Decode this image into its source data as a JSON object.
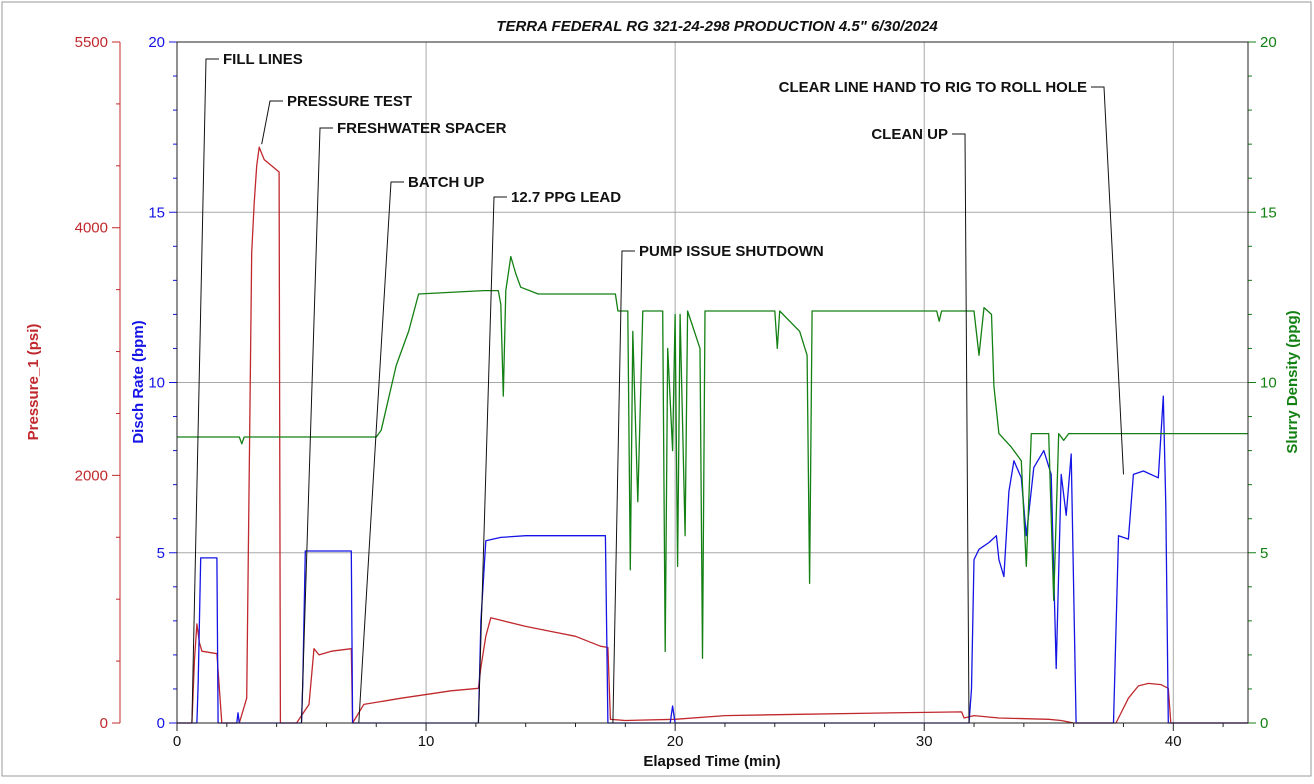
{
  "chart_data": {
    "type": "line",
    "title": "TERRA FEDERAL RG 321-24-298 PRODUCTION 4.5\" 6/30/2024",
    "xlabel": "Elapsed Time (min)",
    "xlim": [
      0,
      43
    ],
    "x_ticks": [
      "0",
      "10",
      "20",
      "30",
      "40"
    ],
    "grid": true,
    "colors": {
      "pressure": "#c0282d",
      "rate": "#1414e6",
      "density": "#138013",
      "grid": "#a8a8a8"
    },
    "axes": {
      "pressure": {
        "label": "Pressure_1 (psi)",
        "range": [
          0,
          5500
        ],
        "ticks": [
          "0",
          "2000",
          "4000",
          "5500"
        ],
        "tick_values": [
          0,
          2000,
          4000,
          5500
        ],
        "color": "#c0282d"
      },
      "rate": {
        "label": "Disch Rate (bpm)",
        "range": [
          0,
          20
        ],
        "ticks": [
          "0",
          "5",
          "10",
          "15",
          "20"
        ],
        "tick_values": [
          0,
          5,
          10,
          15,
          20
        ],
        "color": "#1414e6"
      },
      "density": {
        "label": "Slurry Density (ppg)",
        "range": [
          0,
          20
        ],
        "ticks": [
          "0",
          "5",
          "10",
          "15",
          "20"
        ],
        "tick_values": [
          0,
          5,
          10,
          15,
          20
        ],
        "color": "#138013"
      }
    },
    "series": [
      {
        "name": "Pressure_1 (psi)",
        "axis": "pressure",
        "points": [
          [
            0,
            0
          ],
          [
            0.6,
            0
          ],
          [
            0.7,
            500
          ],
          [
            0.8,
            800
          ],
          [
            0.9,
            650
          ],
          [
            1.0,
            580
          ],
          [
            1.6,
            560
          ],
          [
            1.8,
            0
          ],
          [
            2.5,
            0
          ],
          [
            2.8,
            200
          ],
          [
            2.9,
            2000
          ],
          [
            3.0,
            3800
          ],
          [
            3.1,
            4200
          ],
          [
            3.2,
            4500
          ],
          [
            3.3,
            4650
          ],
          [
            3.5,
            4550
          ],
          [
            3.8,
            4500
          ],
          [
            4.1,
            4450
          ],
          [
            4.15,
            0
          ],
          [
            4.8,
            0
          ],
          [
            5.3,
            150
          ],
          [
            5.5,
            600
          ],
          [
            5.7,
            550
          ],
          [
            6.2,
            580
          ],
          [
            7.0,
            600
          ],
          [
            7.05,
            0
          ],
          [
            7.5,
            150
          ],
          [
            9,
            200
          ],
          [
            11,
            260
          ],
          [
            12.1,
            280
          ],
          [
            12.2,
            450
          ],
          [
            12.4,
            700
          ],
          [
            12.6,
            850
          ],
          [
            13.2,
            820
          ],
          [
            14,
            780
          ],
          [
            15,
            740
          ],
          [
            16,
            700
          ],
          [
            17,
            620
          ],
          [
            17.3,
            610
          ],
          [
            17.4,
            30
          ],
          [
            18,
            20
          ],
          [
            20,
            30
          ],
          [
            22,
            60
          ],
          [
            25,
            70
          ],
          [
            28,
            80
          ],
          [
            31.5,
            90
          ],
          [
            31.6,
            40
          ],
          [
            32,
            60
          ],
          [
            33,
            40
          ],
          [
            35,
            30
          ],
          [
            35.5,
            20
          ],
          [
            36,
            0
          ],
          [
            37.7,
            0
          ],
          [
            38.2,
            200
          ],
          [
            38.6,
            300
          ],
          [
            39,
            320
          ],
          [
            39.5,
            310
          ],
          [
            39.8,
            280
          ],
          [
            39.9,
            0
          ],
          [
            43,
            0
          ]
        ]
      },
      {
        "name": "Disch Rate (bpm)",
        "axis": "rate",
        "points": [
          [
            0,
            0
          ],
          [
            0.8,
            0
          ],
          [
            0.85,
            1.2
          ],
          [
            0.95,
            4.85
          ],
          [
            1.6,
            4.85
          ],
          [
            1.65,
            0
          ],
          [
            2.4,
            0
          ],
          [
            2.45,
            0.3
          ],
          [
            2.5,
            0
          ],
          [
            5.0,
            0
          ],
          [
            5.05,
            1.2
          ],
          [
            5.15,
            5.05
          ],
          [
            7.0,
            5.05
          ],
          [
            7.05,
            0
          ],
          [
            12.1,
            0
          ],
          [
            12.2,
            3
          ],
          [
            12.4,
            5.35
          ],
          [
            13,
            5.45
          ],
          [
            14,
            5.5
          ],
          [
            17.2,
            5.5
          ],
          [
            17.3,
            0
          ],
          [
            19.8,
            0
          ],
          [
            19.9,
            0.5
          ],
          [
            20,
            0
          ],
          [
            31.8,
            0
          ],
          [
            31.9,
            1
          ],
          [
            32.0,
            4.8
          ],
          [
            32.2,
            5.1
          ],
          [
            32.6,
            5.3
          ],
          [
            32.9,
            5.5
          ],
          [
            33.0,
            4.8
          ],
          [
            33.2,
            4.3
          ],
          [
            33.4,
            6.8
          ],
          [
            33.6,
            7.7
          ],
          [
            33.9,
            7.2
          ],
          [
            34.1,
            5.5
          ],
          [
            34.4,
            7.5
          ],
          [
            34.8,
            8.0
          ],
          [
            35.1,
            7.3
          ],
          [
            35.3,
            1.6
          ],
          [
            35.5,
            7.3
          ],
          [
            35.7,
            6.1
          ],
          [
            35.9,
            7.9
          ],
          [
            36.1,
            0
          ],
          [
            37.6,
            0
          ],
          [
            37.8,
            5.5
          ],
          [
            38.2,
            5.4
          ],
          [
            38.4,
            7.3
          ],
          [
            38.8,
            7.4
          ],
          [
            39.4,
            7.2
          ],
          [
            39.6,
            9.6
          ],
          [
            39.7,
            6.4
          ],
          [
            39.8,
            0
          ],
          [
            43,
            0
          ]
        ]
      },
      {
        "name": "Slurry Density (ppg)",
        "axis": "density",
        "points": [
          [
            0,
            8.4
          ],
          [
            2.5,
            8.4
          ],
          [
            2.6,
            8.2
          ],
          [
            2.7,
            8.4
          ],
          [
            5,
            8.4
          ],
          [
            7.5,
            8.4
          ],
          [
            8.0,
            8.4
          ],
          [
            8.2,
            8.6
          ],
          [
            8.8,
            10.5
          ],
          [
            9.3,
            11.5
          ],
          [
            9.7,
            12.6
          ],
          [
            12.3,
            12.7
          ],
          [
            12.9,
            12.7
          ],
          [
            13.0,
            12.3
          ],
          [
            13.1,
            9.6
          ],
          [
            13.2,
            12.7
          ],
          [
            13.4,
            13.7
          ],
          [
            13.6,
            13.2
          ],
          [
            13.8,
            12.8
          ],
          [
            14.5,
            12.6
          ],
          [
            17.6,
            12.6
          ],
          [
            17.7,
            12.1
          ],
          [
            18.1,
            12.1
          ],
          [
            18.2,
            4.5
          ],
          [
            18.3,
            11.5
          ],
          [
            18.5,
            6.5
          ],
          [
            18.7,
            12.1
          ],
          [
            19.5,
            12.1
          ],
          [
            19.6,
            2.1
          ],
          [
            19.7,
            11
          ],
          [
            19.9,
            8
          ],
          [
            20.0,
            12
          ],
          [
            20.1,
            4.6
          ],
          [
            20.2,
            12
          ],
          [
            20.4,
            5.5
          ],
          [
            20.5,
            12.1
          ],
          [
            21.0,
            11
          ],
          [
            21.1,
            1.9
          ],
          [
            21.2,
            12.1
          ],
          [
            24,
            12.1
          ],
          [
            24.1,
            11
          ],
          [
            24.2,
            12.1
          ],
          [
            25,
            11.5
          ],
          [
            25.3,
            10.8
          ],
          [
            25.4,
            4.1
          ],
          [
            25.5,
            12.1
          ],
          [
            30.5,
            12.1
          ],
          [
            30.6,
            11.8
          ],
          [
            30.7,
            12.1
          ],
          [
            32.0,
            12.1
          ],
          [
            32.2,
            10.8
          ],
          [
            32.4,
            12.2
          ],
          [
            32.7,
            12
          ],
          [
            32.8,
            9.9
          ],
          [
            33.0,
            8.5
          ],
          [
            33.5,
            8.1
          ],
          [
            33.9,
            7.7
          ],
          [
            34.1,
            4.6
          ],
          [
            34.3,
            8.5
          ],
          [
            35.0,
            8.5
          ],
          [
            35.2,
            3.6
          ],
          [
            35.4,
            8.5
          ],
          [
            35.6,
            8.3
          ],
          [
            35.8,
            8.5
          ],
          [
            43,
            8.5
          ]
        ]
      }
    ],
    "annotations": [
      {
        "label": "FILL LINES",
        "at_x": 0.6,
        "at_y": 0
      },
      {
        "label": "PRESSURE TEST",
        "at_x": 3.4,
        "at_y": 17.0
      },
      {
        "label": "FRESHWATER SPACER",
        "at_x": 5.0,
        "at_y": 0
      },
      {
        "label": "BATCH UP",
        "at_x": 7.3,
        "at_y": 0
      },
      {
        "label": "12.7 PPG LEAD",
        "at_x": 12.1,
        "at_y": 0
      },
      {
        "label": "PUMP ISSUE SHUTDOWN",
        "at_x": 17.5,
        "at_y": 0
      },
      {
        "label": "CLEAR LINE HAND TO RIG TO ROLL HOLE",
        "at_x": 38.0,
        "at_y": 7.3
      },
      {
        "label": "CLEAN UP",
        "at_x": 31.8,
        "at_y": 0
      }
    ]
  }
}
